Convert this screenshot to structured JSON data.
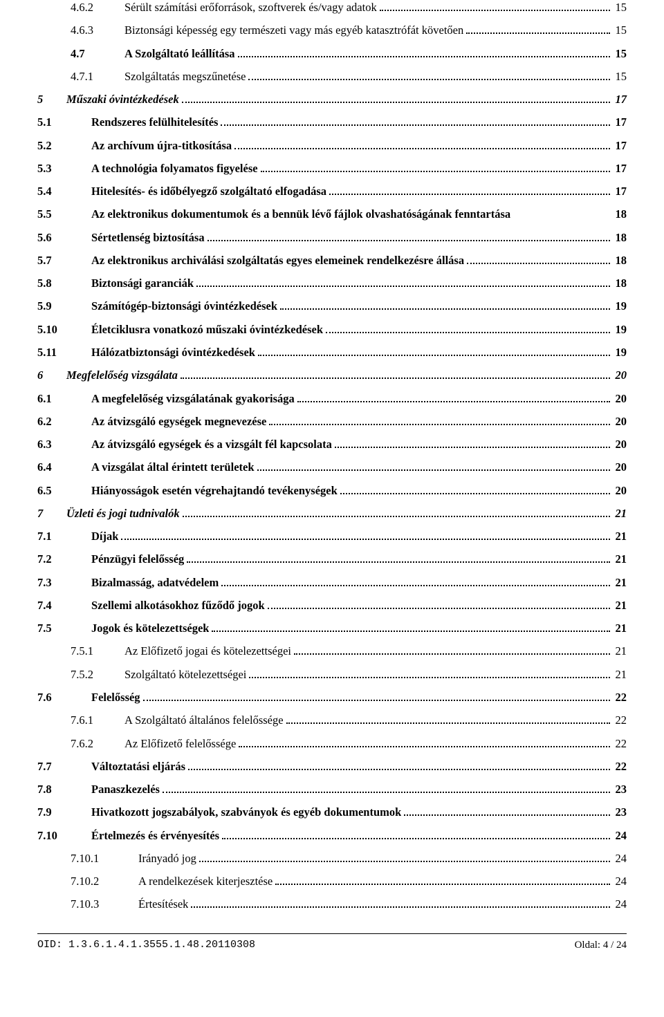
{
  "toc": [
    {
      "level": "sub",
      "num": "4.6.2",
      "title": "Sérült számítási erőforrások, szoftverek és/vagy adatok",
      "page": "15"
    },
    {
      "level": "sub",
      "num": "4.6.3",
      "title": "Biztonsági képesség egy természeti vagy más egyéb katasztrófát követően",
      "page": "15"
    },
    {
      "level": "section",
      "indent": true,
      "num": "4.7",
      "title": "A Szolgáltató leállítása",
      "page": "15"
    },
    {
      "level": "sub",
      "num": "4.7.1",
      "title": "Szolgáltatás megszűnetése",
      "page": "15"
    },
    {
      "level": "chapter",
      "num": "5",
      "title": "Műszaki óvintézkedések",
      "page": "17"
    },
    {
      "level": "section",
      "num": "5.1",
      "title": "Rendszeres felülhitelesítés",
      "page": "17"
    },
    {
      "level": "section",
      "num": "5.2",
      "title": "Az archívum újra-titkosítása",
      "page": "17"
    },
    {
      "level": "section",
      "num": "5.3",
      "title": "A technológia folyamatos figyelése",
      "page": "17"
    },
    {
      "level": "section",
      "num": "5.4",
      "title": "Hitelesítés- és időbélyegző szolgáltató elfogadása",
      "page": "17"
    },
    {
      "level": "section",
      "num": "5.5",
      "title": "Az elektronikus dokumentumok és a bennük lévő fájlok olvashatóságának fenntartása",
      "page": "18",
      "noleader": true
    },
    {
      "level": "section",
      "num": "5.6",
      "title": "Sértetlenség biztosítása",
      "page": "18"
    },
    {
      "level": "section",
      "num": "5.7",
      "title": "Az elektronikus archiválási szolgáltatás egyes elemeinek rendelkezésre állása",
      "page": "18"
    },
    {
      "level": "section",
      "num": "5.8",
      "title": "Biztonsági garanciák",
      "page": "18"
    },
    {
      "level": "section",
      "num": "5.9",
      "title": "Számítógép-biztonsági óvintézkedések",
      "page": "19"
    },
    {
      "level": "section",
      "num": "5.10",
      "title": "Életciklusra vonatkozó műszaki óvintézkedések",
      "page": "19"
    },
    {
      "level": "section",
      "num": "5.11",
      "title": "Hálózatbiztonsági óvintézkedések",
      "page": "19"
    },
    {
      "level": "chapter",
      "num": "6",
      "title": "Megfelelőség vizsgálata",
      "page": "20"
    },
    {
      "level": "section",
      "num": "6.1",
      "title": "A megfelelőség vizsgálatának gyakorisága",
      "page": "20"
    },
    {
      "level": "section",
      "num": "6.2",
      "title": "Az átvizsgáló egységek megnevezése",
      "page": "20"
    },
    {
      "level": "section",
      "num": "6.3",
      "title": "Az átvizsgáló egységek és a vizsgált fél kapcsolata",
      "page": "20"
    },
    {
      "level": "section",
      "num": "6.4",
      "title": "A vizsgálat által érintett területek",
      "page": "20"
    },
    {
      "level": "section",
      "num": "6.5",
      "title": "Hiányosságok esetén végrehajtandó tevékenységek",
      "page": "20"
    },
    {
      "level": "chapter",
      "num": "7",
      "title": "Üzleti és jogi tudnivalók",
      "page": "21"
    },
    {
      "level": "section",
      "num": "7.1",
      "title": "Díjak",
      "page": "21"
    },
    {
      "level": "section",
      "num": "7.2",
      "title": "Pénzügyi felelősség",
      "page": "21"
    },
    {
      "level": "section",
      "num": "7.3",
      "title": "Bizalmasság, adatvédelem",
      "page": "21"
    },
    {
      "level": "section",
      "num": "7.4",
      "title": "Szellemi alkotásokhoz fűződő jogok",
      "page": "21"
    },
    {
      "level": "section",
      "num": "7.5",
      "title": "Jogok és kötelezettségek",
      "page": "21"
    },
    {
      "level": "sub",
      "num": "7.5.1",
      "title": "Az Előfizető jogai és kötelezettségei",
      "page": "21"
    },
    {
      "level": "sub",
      "num": "7.5.2",
      "title": "Szolgáltató kötelezettségei",
      "page": "21"
    },
    {
      "level": "section",
      "num": "7.6",
      "title": "Felelősség",
      "page": "22"
    },
    {
      "level": "sub",
      "num": "7.6.1",
      "title": "A Szolgáltató általános felelőssége",
      "page": "22"
    },
    {
      "level": "sub",
      "num": "7.6.2",
      "title": "Az Előfizető felelőssége",
      "page": "22"
    },
    {
      "level": "section",
      "num": "7.7",
      "title": "Változtatási eljárás",
      "page": "22"
    },
    {
      "level": "section",
      "num": "7.8",
      "title": "Panaszkezelés",
      "page": "23"
    },
    {
      "level": "section",
      "num": "7.9",
      "title": "Hivatkozott jogszabályok, szabványok és egyéb dokumentumok",
      "page": "23"
    },
    {
      "level": "section",
      "num": "7.10",
      "title": "Értelmezés és érvényesítés",
      "page": "24"
    },
    {
      "level": "sub",
      "deep": true,
      "num": "7.10.1",
      "title": "Irányadó jog",
      "page": "24"
    },
    {
      "level": "sub",
      "deep": true,
      "num": "7.10.2",
      "title": "A rendelkezések kiterjesztése",
      "page": "24"
    },
    {
      "level": "sub",
      "deep": true,
      "num": "7.10.3",
      "title": "Értesítések",
      "page": "24"
    }
  ],
  "footer": {
    "oid_label": "OID: 1.3.6.1.4.1.3555.1.48.20110308",
    "page_label": "Oldal: 4 / 24"
  }
}
